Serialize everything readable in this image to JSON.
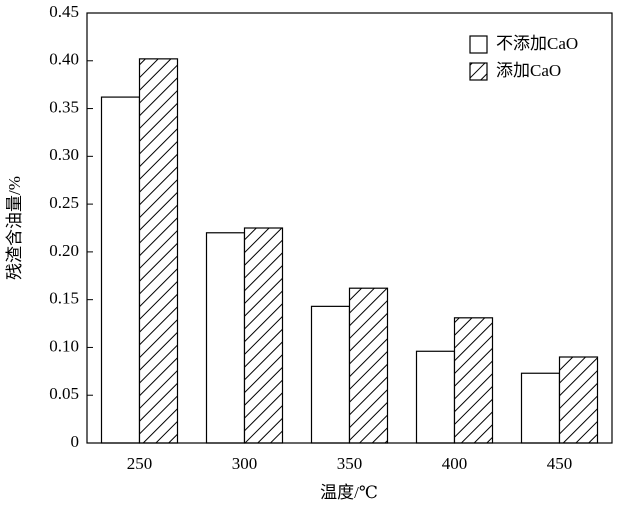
{
  "chart_data": {
    "type": "bar",
    "x_label": "温度/℃",
    "y_label": "残渣含油量/%",
    "categories": [
      "250",
      "300",
      "350",
      "400",
      "450"
    ],
    "series": [
      {
        "name": "不添加CaO",
        "color": "#ffffff",
        "hatch": false,
        "values": [
          0.362,
          0.22,
          0.143,
          0.096,
          0.073
        ]
      },
      {
        "name": "添加CaO",
        "color": "#ffffff",
        "hatch": true,
        "values": [
          0.402,
          0.225,
          0.162,
          0.131,
          0.09
        ]
      }
    ],
    "ylim": [
      0,
      0.45
    ],
    "yticks": [
      0,
      0.05,
      {
        "value": 0.1,
        "label": "0.10"
      },
      0.15,
      {
        "value": 0.2,
        "label": "0.20"
      },
      0.25,
      {
        "value": 0.3,
        "label": "0.30"
      },
      0.35,
      {
        "value": 0.4,
        "label": "0.40"
      },
      0.45
    ],
    "legend": "top-right",
    "grid": false
  }
}
